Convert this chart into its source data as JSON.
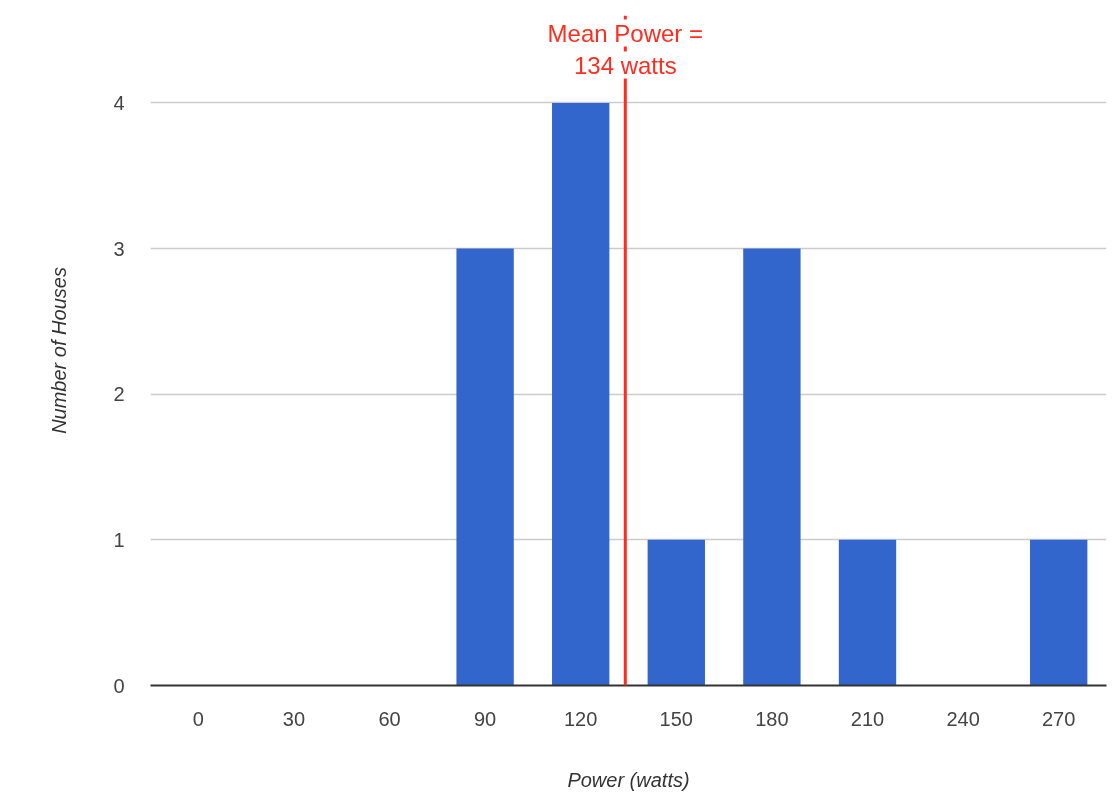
{
  "chart_data": {
    "type": "bar",
    "xlabel": "Power (watts)",
    "ylabel": "Number of Houses",
    "x": [
      0,
      30,
      60,
      90,
      120,
      150,
      180,
      210,
      240,
      270
    ],
    "series": [
      {
        "color": "#3366cc",
        "values": [
          0,
          0,
          0,
          3,
          4,
          1,
          3,
          1,
          0,
          1
        ]
      }
    ],
    "xlim": [
      -15,
      285
    ],
    "xticks": [
      0,
      30,
      60,
      90,
      120,
      150,
      180,
      210,
      240,
      270
    ],
    "ylim": [
      0,
      4.6
    ],
    "yticks": [
      0,
      1,
      2,
      3,
      4
    ],
    "grid": "y",
    "ref_lines": [
      {
        "axis": "x",
        "value": 134,
        "label": "Mean Power =\n134 watts",
        "color": "#ff2d20"
      }
    ]
  }
}
